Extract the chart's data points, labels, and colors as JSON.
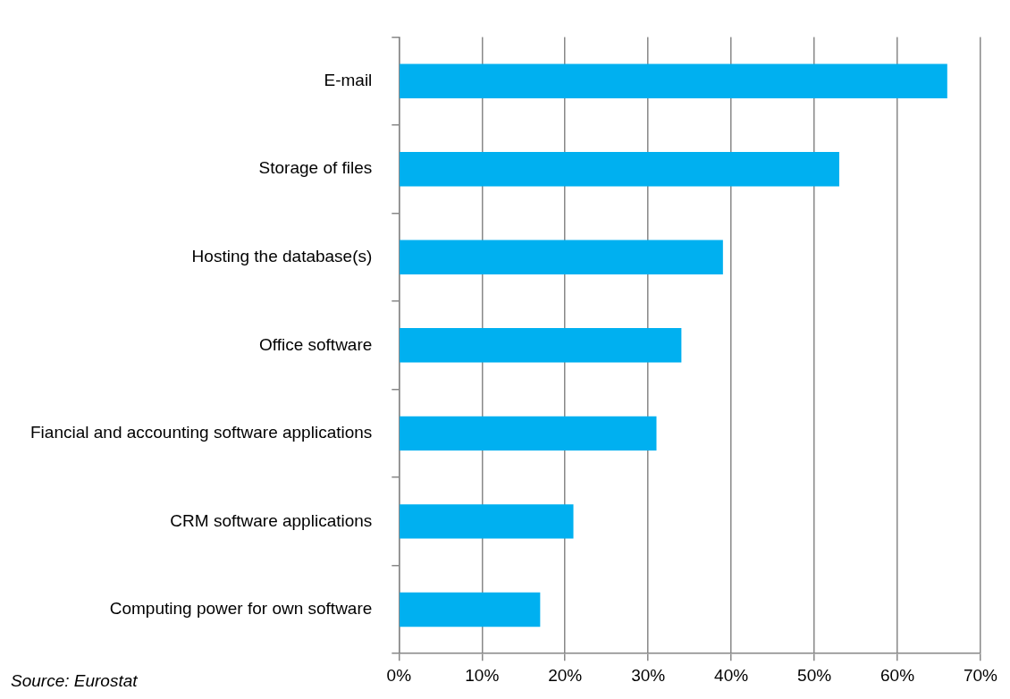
{
  "chart_data": {
    "type": "bar",
    "orientation": "horizontal",
    "categories": [
      "E-mail",
      "Storage of files",
      "Hosting the database(s)",
      "Office software",
      "Fiancial and accounting software applications",
      "CRM software applications",
      "Computing power for own software"
    ],
    "values": [
      66,
      53,
      39,
      34,
      31,
      21,
      17
    ],
    "color": "#00b0f0",
    "xlim": [
      0,
      70
    ],
    "xticks": [
      {
        "value": 0,
        "label": "0%"
      },
      {
        "value": 10,
        "label": "10%"
      },
      {
        "value": 20,
        "label": "20%"
      },
      {
        "value": 30,
        "label": "30%"
      },
      {
        "value": 40,
        "label": "40%"
      },
      {
        "value": 50,
        "label": "50%"
      },
      {
        "value": 60,
        "label": "60%"
      },
      {
        "value": 70,
        "label": "70%"
      }
    ],
    "grid": "x",
    "annotations": [
      "Source: Eurostat"
    ]
  }
}
